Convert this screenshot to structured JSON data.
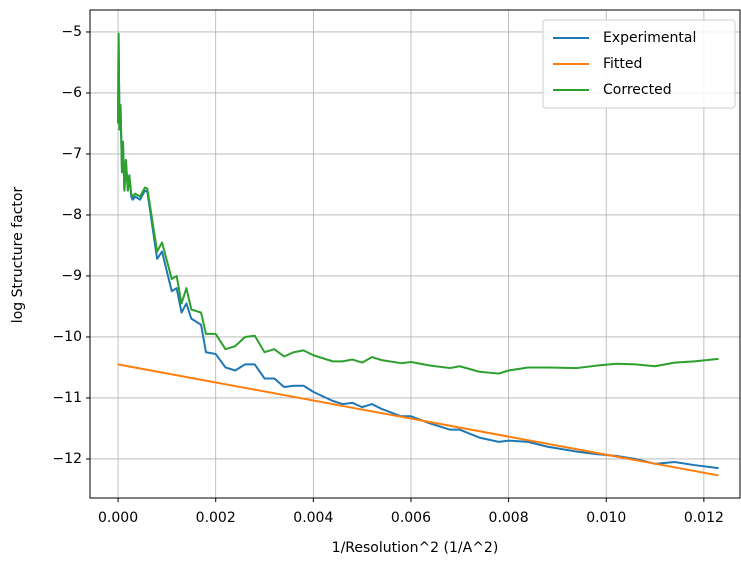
{
  "chart_data": {
    "type": "line",
    "xlabel": "1/Resolution^2 (1/A^2)",
    "ylabel": "log Structure factor",
    "xlim": [
      -0.000575,
      0.01274
    ],
    "ylim": [
      -12.64,
      -4.64
    ],
    "xticks": [
      {
        "value": 0,
        "label": "0.000"
      },
      {
        "value": 0.002,
        "label": "0.002"
      },
      {
        "value": 0.004,
        "label": "0.004"
      },
      {
        "value": 0.006,
        "label": "0.006"
      },
      {
        "value": 0.008,
        "label": "0.008"
      },
      {
        "value": 0.01,
        "label": "0.010"
      },
      {
        "value": 0.012,
        "label": "0.012"
      }
    ],
    "yticks": [
      {
        "value": -12,
        "label": "−12"
      },
      {
        "value": -11,
        "label": "−11"
      },
      {
        "value": -10,
        "label": "−10"
      },
      {
        "value": -9,
        "label": "−9"
      },
      {
        "value": -8,
        "label": "−8"
      },
      {
        "value": -7,
        "label": "−7"
      },
      {
        "value": -6,
        "label": "−6"
      },
      {
        "value": -5,
        "label": "−5"
      }
    ],
    "grid": true,
    "legend": "upper-right",
    "series": [
      {
        "name": "Experimental",
        "color": "#1f77b4",
        "x": [
          0,
          1e-05,
          3e-05,
          5e-05,
          8e-05,
          0.0001,
          0.00013,
          0.00016,
          0.0002,
          0.00023,
          0.00027,
          0.0003,
          0.00035,
          0.00045,
          0.00055,
          0.0006,
          0.0008,
          0.0009,
          0.0011,
          0.0012,
          0.0013,
          0.0014,
          0.0015,
          0.0017,
          0.0018,
          0.002,
          0.0022,
          0.0024,
          0.0026,
          0.0028,
          0.003,
          0.0032,
          0.0034,
          0.0036,
          0.0038,
          0.004,
          0.0044,
          0.0046,
          0.0048,
          0.005,
          0.0052,
          0.0054,
          0.0058,
          0.006,
          0.0064,
          0.0068,
          0.007,
          0.0074,
          0.0078,
          0.008,
          0.0084,
          0.0088,
          0.0094,
          0.0098,
          0.0102,
          0.0106,
          0.011,
          0.0114,
          0.0118,
          0.0123
        ],
        "values": [
          -6.5,
          -5.03,
          -6.6,
          -6.2,
          -7.3,
          -6.8,
          -7.6,
          -7.1,
          -7.6,
          -7.35,
          -7.7,
          -7.75,
          -7.7,
          -7.75,
          -7.6,
          -7.62,
          -8.72,
          -8.6,
          -9.25,
          -9.2,
          -9.6,
          -9.45,
          -9.7,
          -9.8,
          -10.25,
          -10.28,
          -10.5,
          -10.55,
          -10.45,
          -10.45,
          -10.68,
          -10.68,
          -10.82,
          -10.8,
          -10.8,
          -10.9,
          -11.05,
          -11.1,
          -11.08,
          -11.15,
          -11.1,
          -11.18,
          -11.3,
          -11.3,
          -11.42,
          -11.52,
          -11.52,
          -11.65,
          -11.72,
          -11.7,
          -11.72,
          -11.8,
          -11.88,
          -11.92,
          -11.95,
          -12.0,
          -12.08,
          -12.05,
          -12.1,
          -12.15
        ]
      },
      {
        "name": "Fitted",
        "color": "#ff7f0e",
        "x": [
          0,
          0.0123
        ],
        "values": [
          -10.45,
          -12.27
        ]
      },
      {
        "name": "Corrected",
        "color": "#2ca02c",
        "x": [
          0,
          1e-05,
          3e-05,
          5e-05,
          8e-05,
          0.0001,
          0.00013,
          0.00016,
          0.0002,
          0.00023,
          0.00027,
          0.0003,
          0.00035,
          0.00045,
          0.00055,
          0.0006,
          0.0008,
          0.0009,
          0.0011,
          0.0012,
          0.0013,
          0.0014,
          0.0015,
          0.0017,
          0.0018,
          0.002,
          0.0022,
          0.0024,
          0.0026,
          0.0028,
          0.003,
          0.0032,
          0.0034,
          0.0036,
          0.0038,
          0.004,
          0.0044,
          0.0046,
          0.0048,
          0.005,
          0.0052,
          0.0054,
          0.0058,
          0.006,
          0.0064,
          0.0068,
          0.007,
          0.0074,
          0.0078,
          0.008,
          0.0084,
          0.0088,
          0.0094,
          0.0098,
          0.0102,
          0.0106,
          0.011,
          0.0114,
          0.0118,
          0.0123
        ],
        "values": [
          -6.5,
          -5.03,
          -6.6,
          -6.2,
          -7.3,
          -6.8,
          -7.6,
          -7.1,
          -7.6,
          -7.35,
          -7.65,
          -7.7,
          -7.65,
          -7.7,
          -7.55,
          -7.57,
          -8.6,
          -8.45,
          -9.05,
          -9.0,
          -9.45,
          -9.2,
          -9.55,
          -9.6,
          -9.95,
          -9.95,
          -10.2,
          -10.15,
          -10.0,
          -9.98,
          -10.25,
          -10.2,
          -10.32,
          -10.25,
          -10.22,
          -10.3,
          -10.4,
          -10.4,
          -10.37,
          -10.42,
          -10.33,
          -10.38,
          -10.43,
          -10.41,
          -10.47,
          -10.51,
          -10.48,
          -10.57,
          -10.6,
          -10.55,
          -10.5,
          -10.5,
          -10.51,
          -10.47,
          -10.44,
          -10.45,
          -10.48,
          -10.42,
          -10.4,
          -10.36
        ]
      }
    ]
  }
}
